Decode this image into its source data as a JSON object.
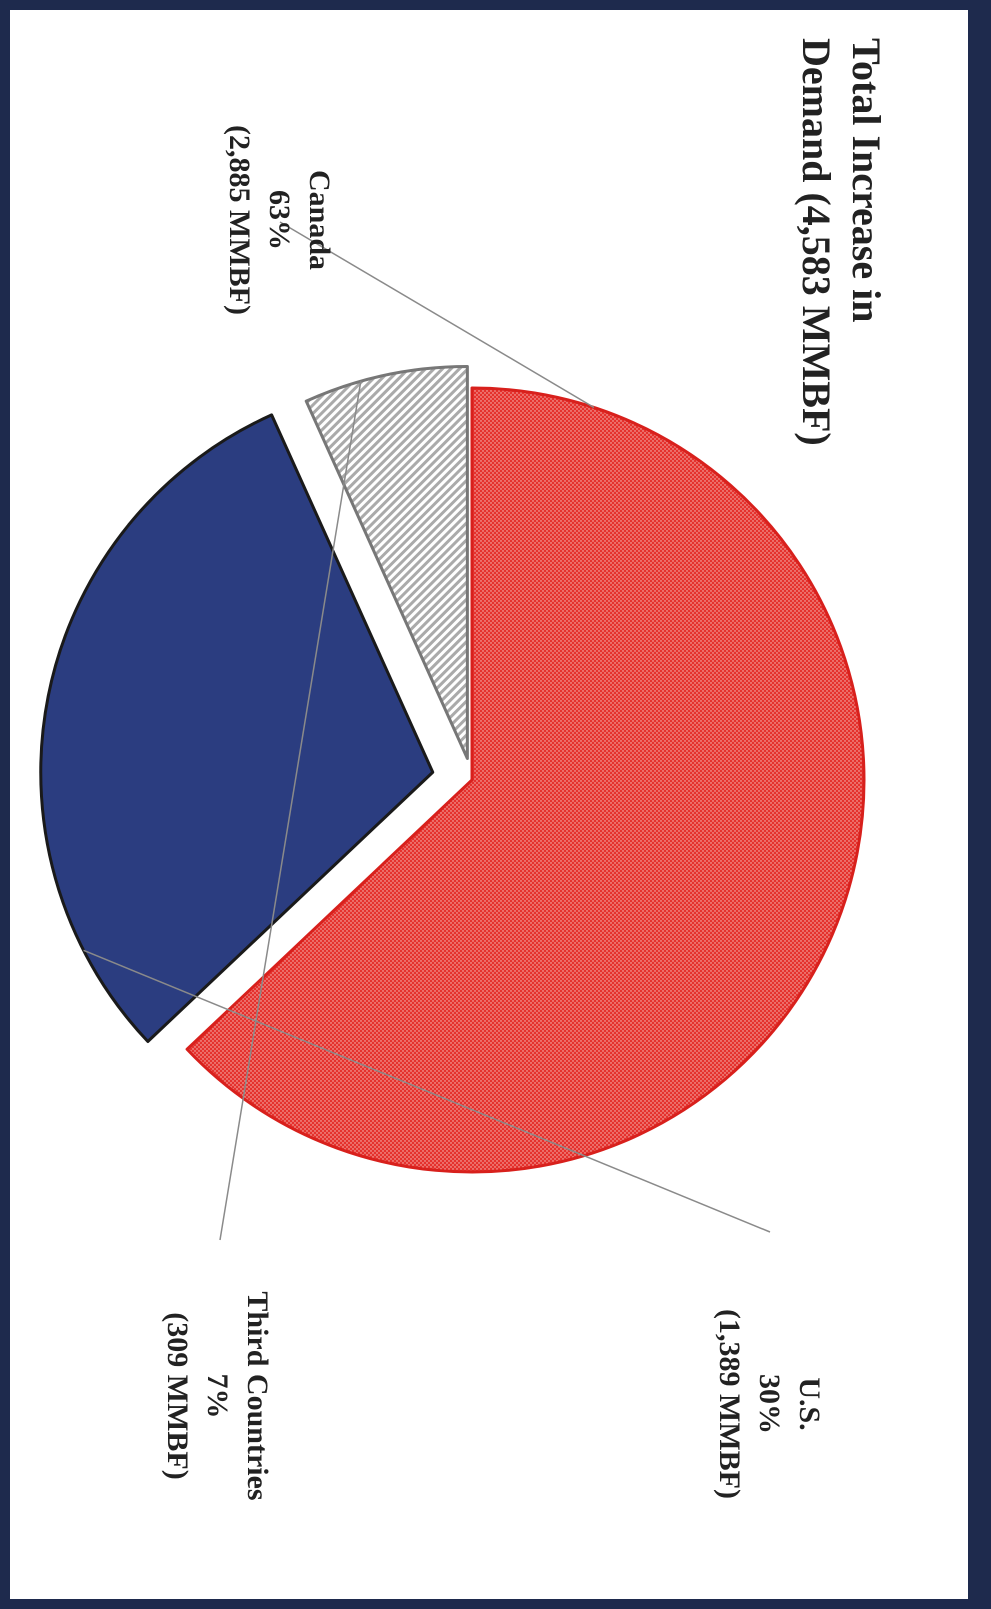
{
  "chart_data": {
    "type": "pie",
    "title": "Total Increase in Demand (4,583 MMBF)",
    "title_lines": [
      "Total Increase in",
      "Demand (4,583 MMBF)"
    ],
    "total": 4583,
    "unit": "MMBF",
    "orientation": "rotated 90° clockwise",
    "exploded": true,
    "slices": [
      {
        "name": "Canada",
        "percent_label": "63%",
        "value_label": "(2,885 MMBF)",
        "value": 2885,
        "percent": 63,
        "color": "#e5312d",
        "pattern": "fine-dots"
      },
      {
        "name": "U.S.",
        "percent_label": "30%",
        "value_label": "(1,389 MMBF)",
        "value": 1389,
        "percent": 30,
        "color": "#2b3d80",
        "pattern": "solid"
      },
      {
        "name": "Third Countries",
        "percent_label": "7%",
        "value_label": "(309 MMBF)",
        "value": 309,
        "percent": 7,
        "color": "#aaaaaa",
        "pattern": "hatch"
      }
    ],
    "colors": {
      "background": "#ffffff",
      "frame": "#1e2a4d",
      "leader_line": "#8a8a8a",
      "text": "#222222"
    }
  }
}
